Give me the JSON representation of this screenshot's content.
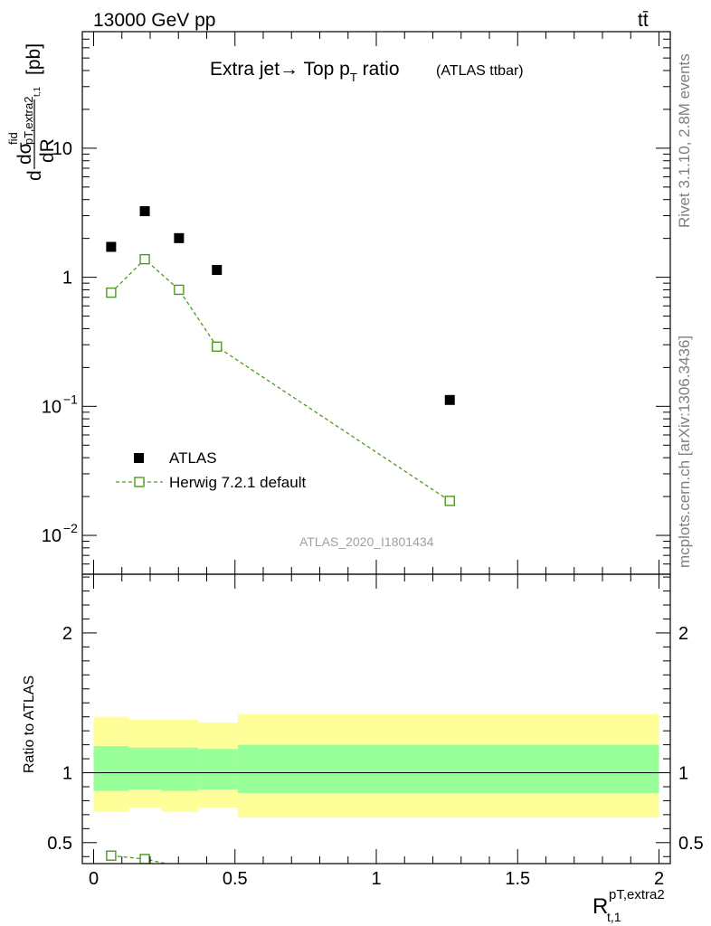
{
  "header": {
    "energy_label": "13000 GeV pp",
    "process_label": "tt̄"
  },
  "side_texts": {
    "rivet": "Rivet 3.1.10,  2.8M events",
    "mcplots": "mcplots.cern.ch [arXiv:1306.3436]"
  },
  "chart_data": [
    {
      "type": "scatter",
      "title_main": "Extra jet→ Top p",
      "title_sub": "T",
      "title_tail": " ratio",
      "title_extra": "(ATLAS ttbar)",
      "watermark": "ATLAS_2020_I1801434",
      "yscale": "log",
      "ylim": [
        0.005,
        80
      ],
      "xlim": [
        -0.04,
        2.04
      ],
      "ylabel_parts": {
        "d": "d",
        "sigma": "dσ",
        "fid": "fid",
        "sub": "pT,extra2",
        "sub2": "t,1",
        "dR": "dR",
        "pb": "[pb]"
      },
      "y_ticks": [
        {
          "value": 10,
          "mant": "10",
          "exp": ""
        },
        {
          "value": 1,
          "mant": "1",
          "exp": ""
        },
        {
          "value": 0.1,
          "mant": "10",
          "exp": "−1"
        },
        {
          "value": 0.01,
          "mant": "10",
          "exp": "−2"
        }
      ],
      "legend": [
        {
          "label": "ATLAS",
          "marker": "filled-square",
          "color": "#000000"
        },
        {
          "label": "Herwig 7.2.1 default",
          "marker": "open-square-dashed",
          "color": "#4d9a1f"
        }
      ],
      "series": [
        {
          "name": "ATLAS",
          "x": [
            0.062,
            0.181,
            0.302,
            0.436,
            1.26
          ],
          "values": [
            1.72,
            3.25,
            2.01,
            1.14,
            0.112
          ]
        },
        {
          "name": "Herwig 7.2.1 default",
          "x": [
            0.062,
            0.181,
            0.302,
            0.436,
            1.26
          ],
          "values": [
            0.76,
            1.38,
            0.8,
            0.29,
            0.0185
          ]
        }
      ]
    },
    {
      "type": "line",
      "ylabel": "Ratio to ATLAS",
      "xlabel_main": "R",
      "xlabel_sup": "pT,extra2",
      "xlabel_sub": "t,1",
      "xlim": [
        -0.04,
        2.04
      ],
      "ylim": [
        0.35,
        2.42
      ],
      "x_ticks": [
        {
          "value": 0,
          "label": "0"
        },
        {
          "value": 0.5,
          "label": "0.5"
        },
        {
          "value": 1,
          "label": "1"
        },
        {
          "value": 1.5,
          "label": "1.5"
        },
        {
          "value": 2,
          "label": "2"
        }
      ],
      "y_ticks": [
        {
          "value": 0.5,
          "label": "0.5"
        },
        {
          "value": 1,
          "label": "1"
        },
        {
          "value": 2,
          "label": "2"
        }
      ],
      "bands": {
        "bin_edges": [
          0,
          0.125,
          0.24,
          0.37,
          0.51,
          2.0
        ],
        "stat": {
          "low": [
            0.87,
            0.88,
            0.87,
            0.88,
            0.855
          ],
          "high": [
            1.19,
            1.18,
            1.18,
            1.17,
            1.2
          ],
          "color": "#99ff99"
        },
        "total": {
          "low": [
            0.72,
            0.75,
            0.72,
            0.75,
            0.68
          ],
          "high": [
            1.4,
            1.38,
            1.38,
            1.36,
            1.42
          ],
          "color": "#ffff99"
        }
      },
      "series": [
        {
          "name": "Herwig 7.2.1 default",
          "x": [
            0.062,
            0.181,
            0.302
          ],
          "values": [
            0.407,
            0.383,
            0.33
          ],
          "err": [
            0.022,
            0.015,
            0.0
          ]
        }
      ]
    }
  ]
}
